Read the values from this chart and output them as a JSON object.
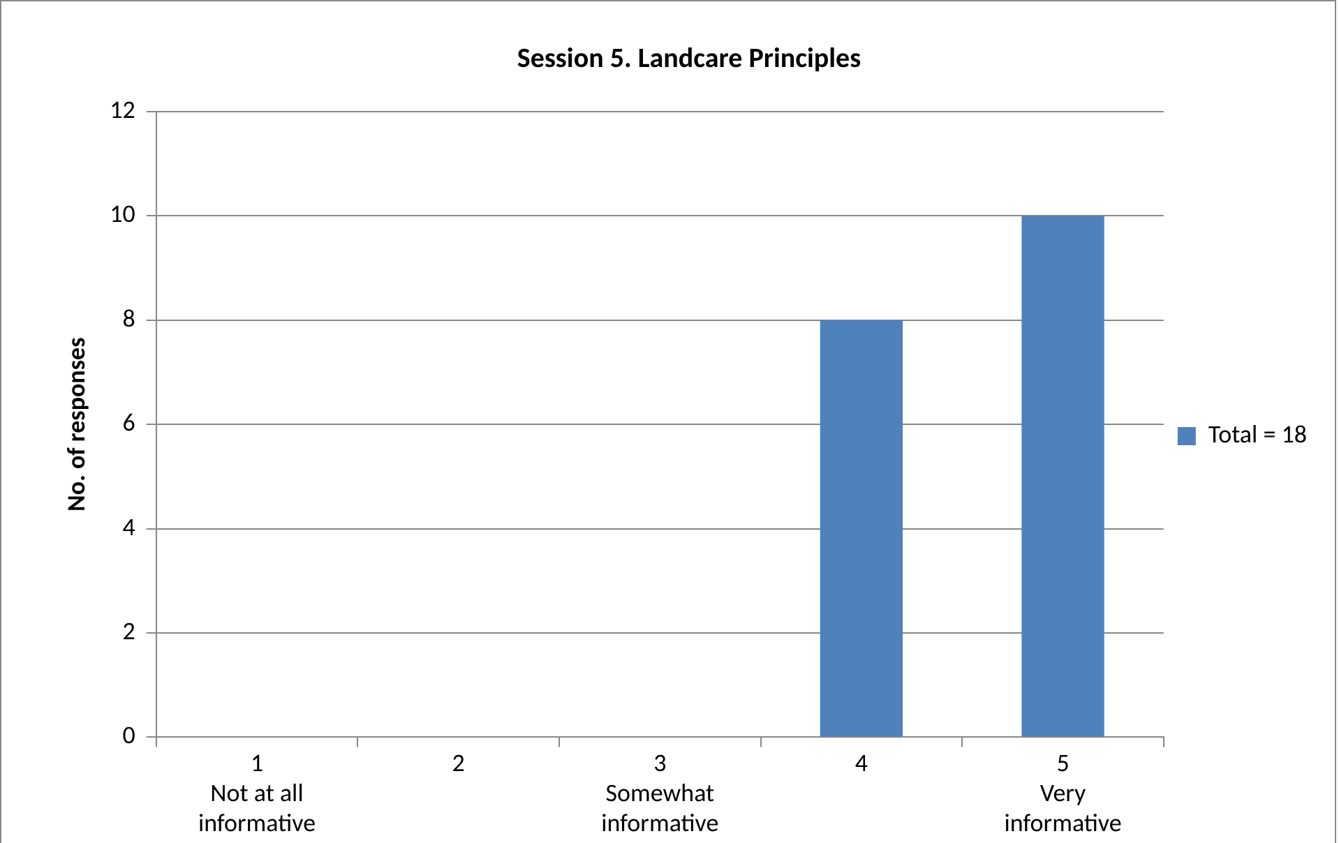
{
  "chart_data": {
    "type": "bar",
    "title": "Session 5. Landcare Principles",
    "ylabel": "No. of responses",
    "categories": [
      "1\nNot at all\ninformative",
      "2",
      "3\nSomewhat\ninformative",
      "4",
      "5\nVery\ninformative"
    ],
    "series": [
      {
        "name": "Total = 18",
        "color": "#4f81bd",
        "values": [
          0,
          0,
          0,
          8,
          10
        ]
      }
    ],
    "ylim": [
      0,
      12
    ],
    "yticks": [
      0,
      2,
      4,
      6,
      8,
      10,
      12
    ],
    "grid": "y",
    "legend": "right"
  }
}
